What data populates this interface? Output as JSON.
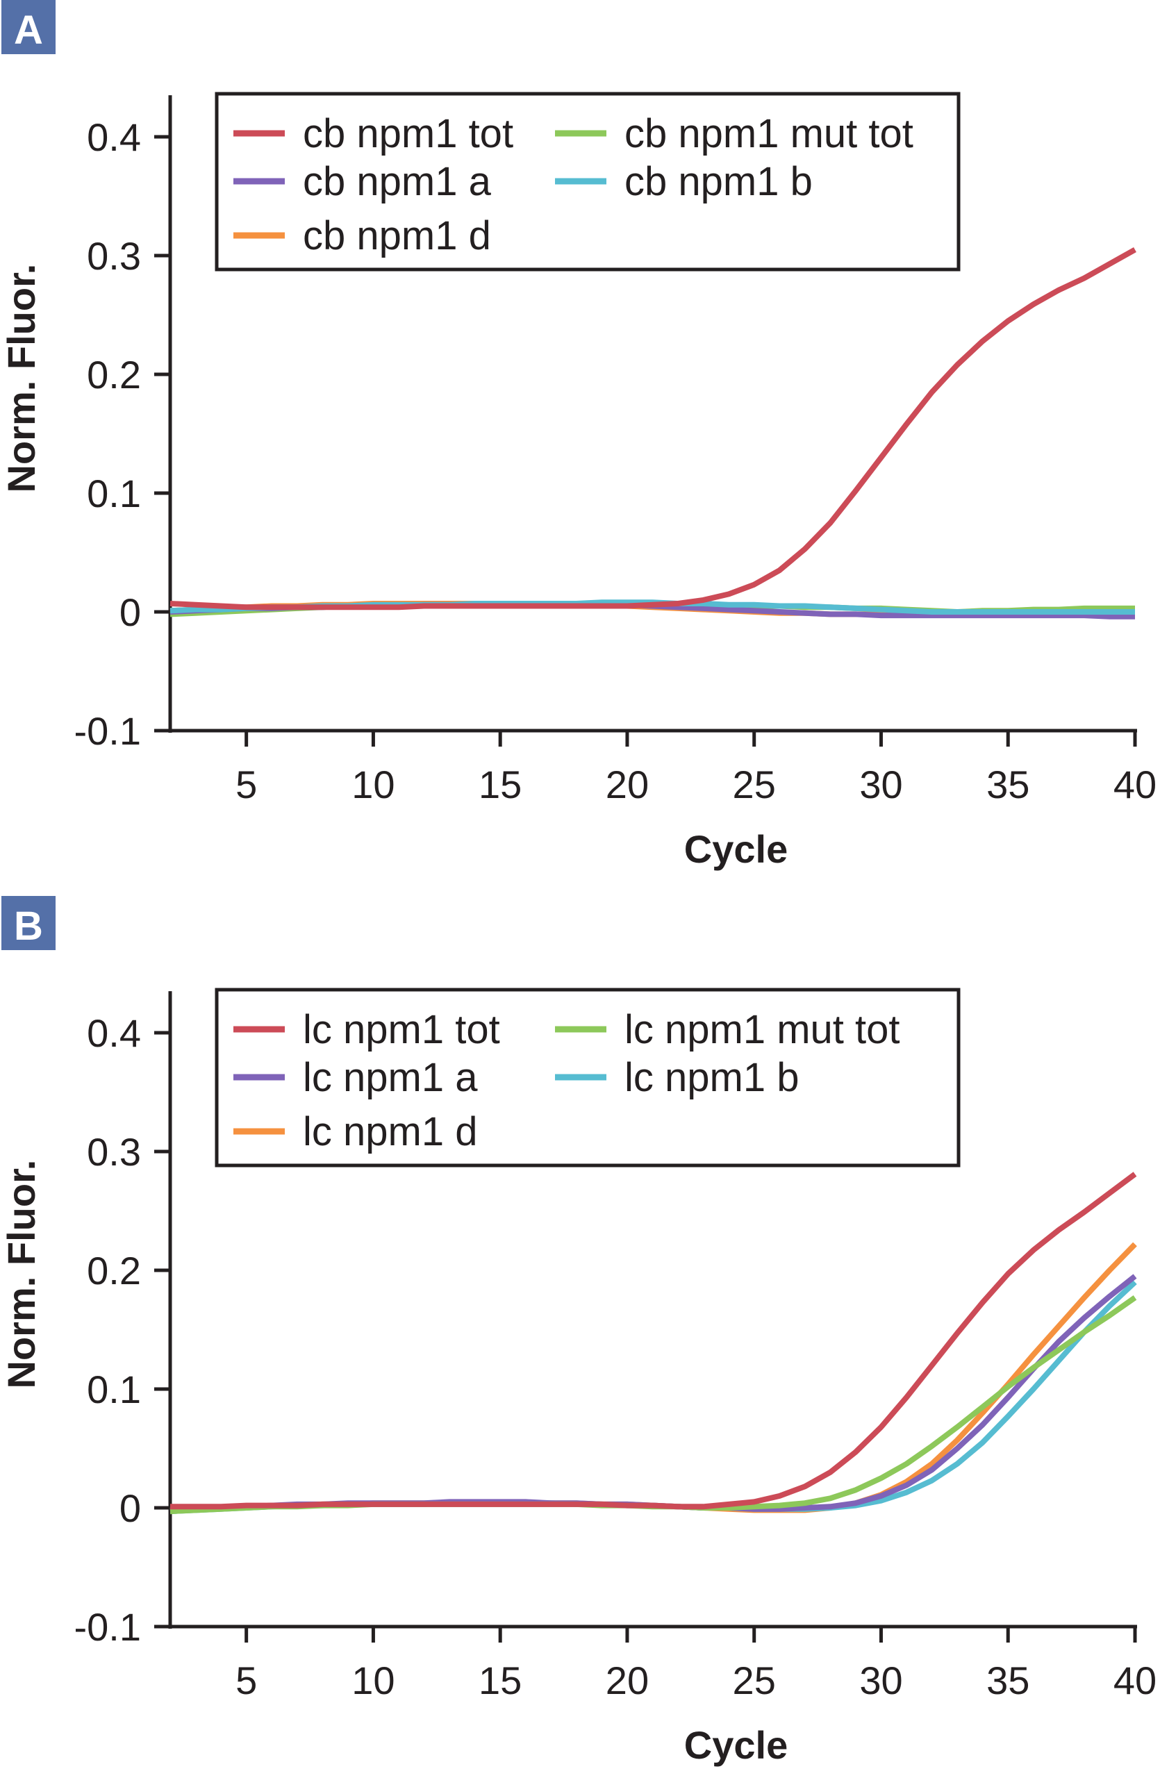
{
  "chart_data": [
    {
      "panel_label": "A",
      "type": "line",
      "xlabel": "Cycle",
      "ylabel": "Norm. Fluor.",
      "xlim": [
        2,
        40
      ],
      "ylim": [
        -0.1,
        0.435
      ],
      "xticks": [
        5,
        10,
        15,
        20,
        25,
        30,
        35,
        40
      ],
      "yticks": [
        -0.1,
        0,
        0.1,
        0.2,
        0.3,
        0.4
      ],
      "ytick_labels": [
        "-0.1",
        "0",
        "0.1",
        "0.2",
        "0.3",
        "0.4"
      ],
      "legend_position": "top",
      "x": [
        2,
        3,
        4,
        5,
        6,
        7,
        8,
        9,
        10,
        11,
        12,
        13,
        14,
        15,
        16,
        17,
        18,
        19,
        20,
        21,
        22,
        23,
        24,
        25,
        26,
        27,
        28,
        29,
        30,
        31,
        32,
        33,
        34,
        35,
        36,
        37,
        38,
        39,
        40
      ],
      "series": [
        {
          "name": "cb npm1 tot",
          "color": "#cc4b57",
          "values": [
            0.007,
            0.006,
            0.005,
            0.004,
            0.004,
            0.004,
            0.004,
            0.004,
            0.004,
            0.004,
            0.005,
            0.005,
            0.005,
            0.005,
            0.005,
            0.005,
            0.005,
            0.005,
            0.005,
            0.006,
            0.007,
            0.01,
            0.015,
            0.023,
            0.035,
            0.053,
            0.075,
            0.102,
            0.13,
            0.158,
            0.185,
            0.208,
            0.228,
            0.245,
            0.259,
            0.271,
            0.281,
            0.293,
            0.305
          ]
        },
        {
          "name": "cb npm1 mut tot",
          "color": "#8dc85a",
          "values": [
            -0.002,
            -0.001,
            0.0,
            0.001,
            0.002,
            0.003,
            0.004,
            0.005,
            0.005,
            0.006,
            0.006,
            0.006,
            0.006,
            0.006,
            0.006,
            0.007,
            0.007,
            0.007,
            0.007,
            0.007,
            0.006,
            0.006,
            0.005,
            0.005,
            0.005,
            0.004,
            0.004,
            0.003,
            0.003,
            0.002,
            0.001,
            0.0,
            0.001,
            0.001,
            0.002,
            0.002,
            0.003,
            0.003,
            0.003
          ]
        },
        {
          "name": "cb npm1 a",
          "color": "#7f63b8",
          "values": [
            0.0,
            0.001,
            0.002,
            0.003,
            0.003,
            0.004,
            0.004,
            0.005,
            0.005,
            0.005,
            0.006,
            0.006,
            0.006,
            0.006,
            0.006,
            0.006,
            0.006,
            0.006,
            0.006,
            0.005,
            0.004,
            0.003,
            0.002,
            0.001,
            0.0,
            -0.001,
            -0.002,
            -0.002,
            -0.003,
            -0.003,
            -0.003,
            -0.003,
            -0.003,
            -0.003,
            -0.003,
            -0.003,
            -0.003,
            -0.004,
            -0.004
          ]
        },
        {
          "name": "cb npm1 b",
          "color": "#56bcd1",
          "values": [
            0.001,
            0.002,
            0.002,
            0.003,
            0.004,
            0.004,
            0.005,
            0.005,
            0.006,
            0.006,
            0.006,
            0.006,
            0.007,
            0.007,
            0.007,
            0.007,
            0.007,
            0.008,
            0.008,
            0.008,
            0.007,
            0.007,
            0.006,
            0.006,
            0.005,
            0.005,
            0.004,
            0.003,
            0.002,
            0.001,
            0.0,
            0.0,
            0.0,
            0.0,
            0.0,
            0.0,
            0.0,
            0.0,
            0.0
          ]
        },
        {
          "name": "cb npm1 d",
          "color": "#f5913f",
          "values": [
            0.001,
            0.002,
            0.003,
            0.004,
            0.005,
            0.005,
            0.006,
            0.006,
            0.007,
            0.007,
            0.007,
            0.007,
            0.007,
            0.006,
            0.006,
            0.006,
            0.006,
            0.005,
            0.005,
            0.004,
            0.003,
            0.002,
            0.001,
            0.0,
            -0.001,
            -0.001,
            -0.002,
            -0.002,
            -0.002,
            -0.002,
            -0.002,
            -0.002,
            -0.002,
            -0.002,
            -0.002,
            -0.002,
            -0.002,
            -0.002,
            -0.002
          ]
        }
      ],
      "draw_order": [
        1,
        4,
        2,
        3,
        0
      ]
    },
    {
      "panel_label": "B",
      "type": "line",
      "xlabel": "Cycle",
      "ylabel": "Norm. Fluor.",
      "xlim": [
        2,
        40
      ],
      "ylim": [
        -0.1,
        0.435
      ],
      "xticks": [
        5,
        10,
        15,
        20,
        25,
        30,
        35,
        40
      ],
      "yticks": [
        -0.1,
        0,
        0.1,
        0.2,
        0.3,
        0.4
      ],
      "ytick_labels": [
        "-0.1",
        "0",
        "0.1",
        "0.2",
        "0.3",
        "0.4"
      ],
      "legend_position": "top",
      "x": [
        2,
        3,
        4,
        5,
        6,
        7,
        8,
        9,
        10,
        11,
        12,
        13,
        14,
        15,
        16,
        17,
        18,
        19,
        20,
        21,
        22,
        23,
        24,
        25,
        26,
        27,
        28,
        29,
        30,
        31,
        32,
        33,
        34,
        35,
        36,
        37,
        38,
        39,
        40
      ],
      "series": [
        {
          "name": "lc npm1 tot",
          "color": "#cc4b57",
          "values": [
            0.001,
            0.001,
            0.001,
            0.002,
            0.002,
            0.002,
            0.003,
            0.003,
            0.003,
            0.003,
            0.003,
            0.003,
            0.003,
            0.003,
            0.003,
            0.003,
            0.003,
            0.003,
            0.002,
            0.002,
            0.001,
            0.001,
            0.003,
            0.005,
            0.01,
            0.018,
            0.03,
            0.047,
            0.068,
            0.093,
            0.12,
            0.147,
            0.173,
            0.197,
            0.217,
            0.234,
            0.249,
            0.265,
            0.281
          ]
        },
        {
          "name": "lc npm1 mut tot",
          "color": "#8dc85a",
          "values": [
            -0.003,
            -0.002,
            -0.001,
            0.0,
            0.001,
            0.001,
            0.002,
            0.002,
            0.003,
            0.003,
            0.003,
            0.003,
            0.003,
            0.003,
            0.003,
            0.003,
            0.003,
            0.002,
            0.002,
            0.001,
            0.001,
            0.0,
            0.0,
            0.001,
            0.002,
            0.004,
            0.008,
            0.015,
            0.025,
            0.037,
            0.052,
            0.068,
            0.085,
            0.102,
            0.118,
            0.133,
            0.148,
            0.162,
            0.177
          ]
        },
        {
          "name": "lc npm1 a",
          "color": "#7f63b8",
          "values": [
            -0.002,
            -0.001,
            0.0,
            0.001,
            0.002,
            0.003,
            0.003,
            0.004,
            0.004,
            0.004,
            0.004,
            0.005,
            0.005,
            0.005,
            0.005,
            0.004,
            0.004,
            0.003,
            0.003,
            0.002,
            0.001,
            0.0,
            0.0,
            -0.001,
            -0.001,
            0.0,
            0.001,
            0.004,
            0.01,
            0.019,
            0.032,
            0.05,
            0.07,
            0.093,
            0.117,
            0.14,
            0.16,
            0.178,
            0.195
          ]
        },
        {
          "name": "lc npm1 b",
          "color": "#56bcd1",
          "values": [
            -0.003,
            -0.002,
            -0.001,
            0.0,
            0.001,
            0.002,
            0.002,
            0.003,
            0.003,
            0.003,
            0.003,
            0.004,
            0.004,
            0.004,
            0.004,
            0.004,
            0.003,
            0.003,
            0.002,
            0.002,
            0.001,
            0.0,
            0.0,
            -0.001,
            -0.001,
            -0.001,
            0.0,
            0.002,
            0.006,
            0.013,
            0.023,
            0.037,
            0.055,
            0.077,
            0.1,
            0.124,
            0.148,
            0.17,
            0.19
          ]
        },
        {
          "name": "lc npm1 d",
          "color": "#f5913f",
          "values": [
            -0.002,
            -0.001,
            0.0,
            0.001,
            0.002,
            0.002,
            0.003,
            0.003,
            0.004,
            0.004,
            0.004,
            0.004,
            0.004,
            0.004,
            0.004,
            0.004,
            0.004,
            0.003,
            0.003,
            0.002,
            0.001,
            0.0,
            -0.001,
            -0.002,
            -0.002,
            -0.002,
            0.0,
            0.004,
            0.011,
            0.022,
            0.037,
            0.057,
            0.08,
            0.104,
            0.129,
            0.153,
            0.177,
            0.2,
            0.222
          ]
        }
      ],
      "draw_order": [
        4,
        3,
        2,
        1,
        0
      ]
    }
  ],
  "panel_label_color": "#5470a8"
}
